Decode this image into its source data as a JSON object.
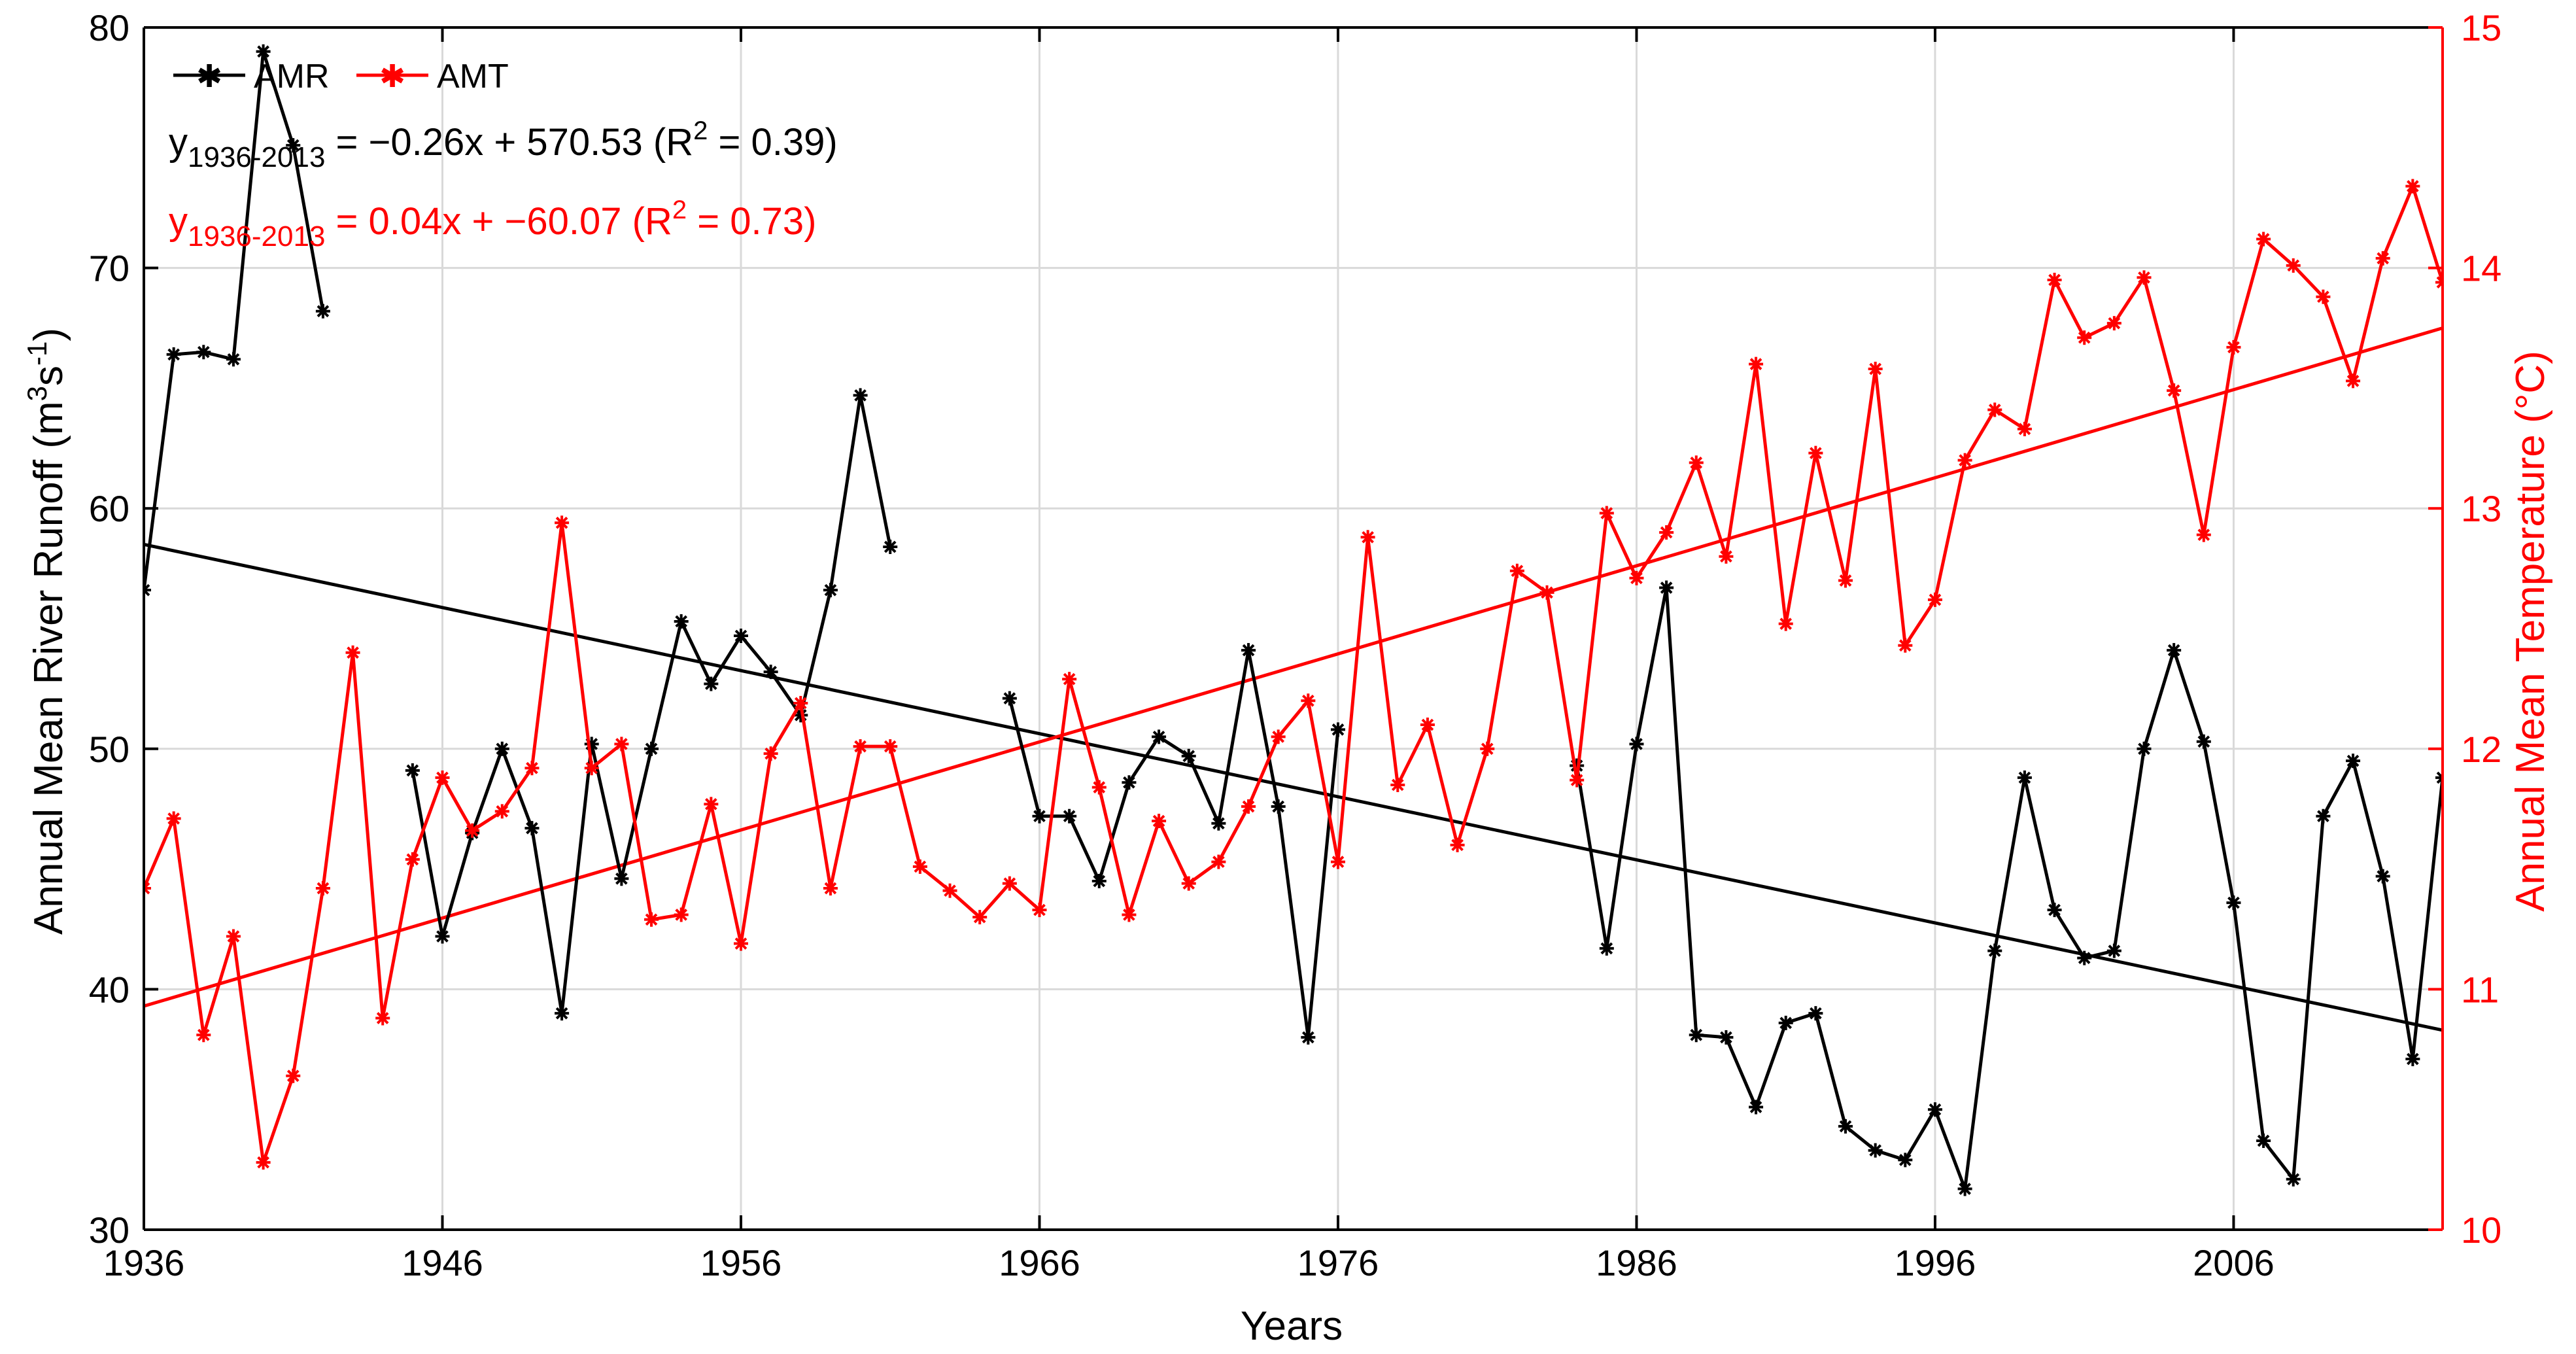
{
  "chart_data": {
    "type": "line",
    "xlabel": "Years",
    "ylabel_left": "Annual Mean River Runoff (m",
    "ylabel_left_sup1": "3",
    "ylabel_left_mid": "s",
    "ylabel_left_sup2": "-1",
    "ylabel_left_end": ")",
    "ylabel_right": "Annual Mean Temperature (°C)",
    "xlim": [
      1936,
      2013
    ],
    "ylim_left": [
      30,
      80
    ],
    "ylim_right": [
      10,
      15
    ],
    "x_ticks": [
      1936,
      1946,
      1956,
      1966,
      1976,
      1986,
      1996,
      2006
    ],
    "y_ticks_left": [
      30,
      40,
      50,
      60,
      70,
      80
    ],
    "y_ticks_right": [
      10,
      11,
      12,
      13,
      14,
      15
    ],
    "legend": [
      {
        "label": "AMR",
        "color": "#000000"
      },
      {
        "label": "AMT",
        "color": "#ff0000"
      }
    ],
    "equations": [
      {
        "y": "y",
        "sub": "1936-2013",
        "text": " = −0.26x + 570.53 (R",
        "sup": "2",
        "end": " = 0.39)",
        "color": "#000000"
      },
      {
        "y": "y",
        "sub": "1936-2013",
        "text": " = 0.04x + −60.07 (R",
        "sup": "2",
        "end": " = 0.73)",
        "color": "#ff0000"
      }
    ],
    "series": [
      {
        "name": "AMR",
        "axis": "left",
        "color": "#000000",
        "x": [
          1936,
          1937,
          1938,
          1939,
          1940,
          1941,
          1942,
          null,
          1945,
          1946,
          1947,
          1948,
          1949,
          1950,
          1951,
          1952,
          1953,
          1954,
          1955,
          1956,
          1957,
          1958,
          1959,
          1960,
          1961,
          null,
          1965,
          1966,
          1967,
          1968,
          1969,
          1970,
          1971,
          1972,
          1973,
          1974,
          1975,
          1976,
          null,
          1984,
          1985,
          1986,
          1987,
          1988,
          1989,
          1990,
          1991,
          1992,
          1993,
          1994,
          1995,
          1996,
          1997,
          1998,
          1999,
          2000,
          2001,
          2002,
          2003,
          2004,
          2005,
          2006,
          2007,
          2008,
          2009,
          2010,
          2011,
          2012,
          2013
        ],
        "y": [
          56.6,
          66.4,
          66.5,
          66.2,
          79.0,
          75.1,
          68.2,
          null,
          49.1,
          42.2,
          46.5,
          50.0,
          46.7,
          39.0,
          50.2,
          44.6,
          50.0,
          55.3,
          52.7,
          54.7,
          53.2,
          51.4,
          56.6,
          64.7,
          58.4,
          null,
          52.1,
          47.2,
          47.2,
          44.5,
          48.6,
          50.5,
          49.7,
          46.9,
          54.1,
          47.6,
          38.0,
          50.8,
          null,
          49.3,
          41.7,
          50.2,
          56.7,
          38.1,
          38.0,
          35.1,
          38.6,
          39.0,
          34.3,
          33.3,
          32.9,
          35.0,
          31.7,
          41.6,
          48.8,
          43.3,
          41.3,
          41.6,
          50.0,
          54.1,
          50.3,
          43.6,
          33.7,
          32.1,
          47.2,
          49.5,
          44.7,
          37.1,
          48.8
        ]
      },
      {
        "name": "AMT",
        "axis": "right",
        "color": "#ff0000",
        "x": [
          1936,
          1937,
          1938,
          1939,
          1940,
          1941,
          1942,
          1943,
          1944,
          1945,
          1946,
          1947,
          1948,
          1949,
          1950,
          1951,
          1952,
          1953,
          1954,
          1955,
          1956,
          1957,
          1958,
          1959,
          1960,
          1961,
          1962,
          1963,
          1964,
          1965,
          1966,
          1967,
          1968,
          1969,
          1970,
          1971,
          1972,
          1973,
          1974,
          1975,
          1976,
          1977,
          1978,
          1979,
          1980,
          1981,
          1982,
          1983,
          1984,
          1985,
          1986,
          1987,
          1988,
          1989,
          1990,
          1991,
          1992,
          1993,
          1994,
          1995,
          1996,
          1997,
          1998,
          1999,
          2000,
          2001,
          2002,
          2003,
          2004,
          2005,
          2006,
          2007,
          2008,
          2009,
          2010,
          2011,
          2012,
          2013
        ],
        "y": [
          11.42,
          11.71,
          10.81,
          11.22,
          10.28,
          10.64,
          11.42,
          12.4,
          10.88,
          11.54,
          11.88,
          11.66,
          11.74,
          11.92,
          12.94,
          11.92,
          12.02,
          11.29,
          11.31,
          11.77,
          11.19,
          11.98,
          12.19,
          11.42,
          12.01,
          12.01,
          11.51,
          11.41,
          11.3,
          11.44,
          11.33,
          12.29,
          11.84,
          11.31,
          11.7,
          11.44,
          11.53,
          11.76,
          12.05,
          12.2,
          11.53,
          12.88,
          11.85,
          12.1,
          11.6,
          12.0,
          12.74,
          12.65,
          11.87,
          12.98,
          12.71,
          12.9,
          13.19,
          12.8,
          13.6,
          12.52,
          13.23,
          12.7,
          13.58,
          12.43,
          12.62,
          13.2,
          13.41,
          13.33,
          13.95,
          13.71,
          13.77,
          13.96,
          13.49,
          12.89,
          13.67,
          14.12,
          14.01,
          13.88,
          13.53,
          14.04,
          14.34,
          13.94
        ]
      }
    ],
    "trendlines": [
      {
        "name": "AMR trend",
        "axis": "left",
        "color": "#000000",
        "x": [
          1936,
          2013
        ],
        "y": [
          58.5,
          38.3
        ]
      },
      {
        "name": "AMT trend",
        "axis": "right",
        "color": "#ff0000",
        "x": [
          1936,
          2013
        ],
        "y": [
          10.93,
          13.75
        ]
      }
    ]
  }
}
